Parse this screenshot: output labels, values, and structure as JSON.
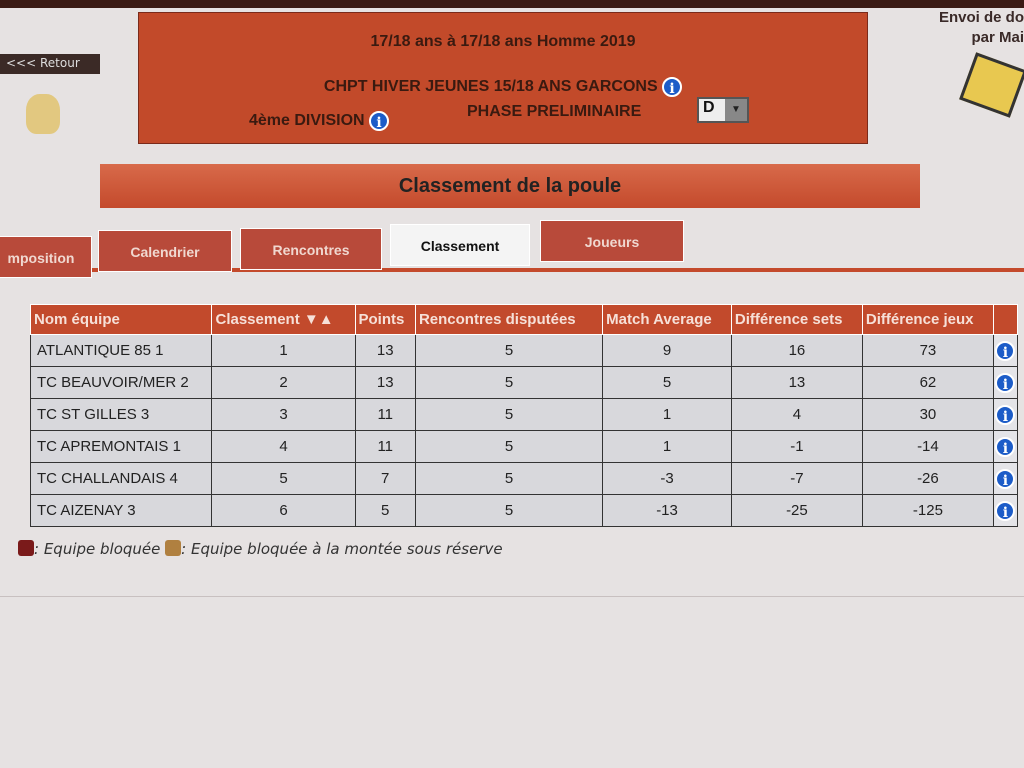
{
  "nav": {
    "back_label": "<<< Retour"
  },
  "header": {
    "age_line": "17/18 ans  à 17/18 ans  Homme  2019",
    "championship": "CHPT HIVER JEUNES 15/18 ANS GARCONS",
    "division": "4ème DIVISION",
    "phase": "PHASE PRELIMINAIRE",
    "poule_select": "D"
  },
  "mail": {
    "label_line1": "Envoi de do",
    "label_line2": "par Mai"
  },
  "page_title": "Classement de la poule",
  "tabs": [
    {
      "label": "mposition"
    },
    {
      "label": "Calendrier"
    },
    {
      "label": "Rencontres"
    },
    {
      "label": "Classement",
      "active": true
    },
    {
      "label": "Joueurs"
    }
  ],
  "table": {
    "headers": [
      "Nom équipe",
      "Classement ▼▲",
      "Points",
      "Rencontres disputées",
      "Match Average",
      "Différence sets",
      "Différence jeux"
    ],
    "rows": [
      [
        "ATLANTIQUE 85 1",
        "1",
        "13",
        "5",
        "9",
        "16",
        "73"
      ],
      [
        "TC BEAUVOIR/MER 2",
        "2",
        "13",
        "5",
        "5",
        "13",
        "62"
      ],
      [
        "TC ST GILLES 3",
        "3",
        "11",
        "5",
        "1",
        "4",
        "30"
      ],
      [
        "TC APREMONTAIS 1",
        "4",
        "11",
        "5",
        "1",
        "-1",
        "-14"
      ],
      [
        "TC CHALLANDAIS 4",
        "5",
        "7",
        "5",
        "-3",
        "-7",
        "-26"
      ],
      [
        "TC AIZENAY 3",
        "6",
        "5",
        "5",
        "-13",
        "-25",
        "-125"
      ]
    ]
  },
  "legend": {
    "blocked": ": Equipe bloquée",
    "blocked_promotion": ": Equipe bloquée à la montée sous réserve"
  },
  "colors": {
    "accent": "#c24a2c",
    "info": "#1c5cc8"
  }
}
